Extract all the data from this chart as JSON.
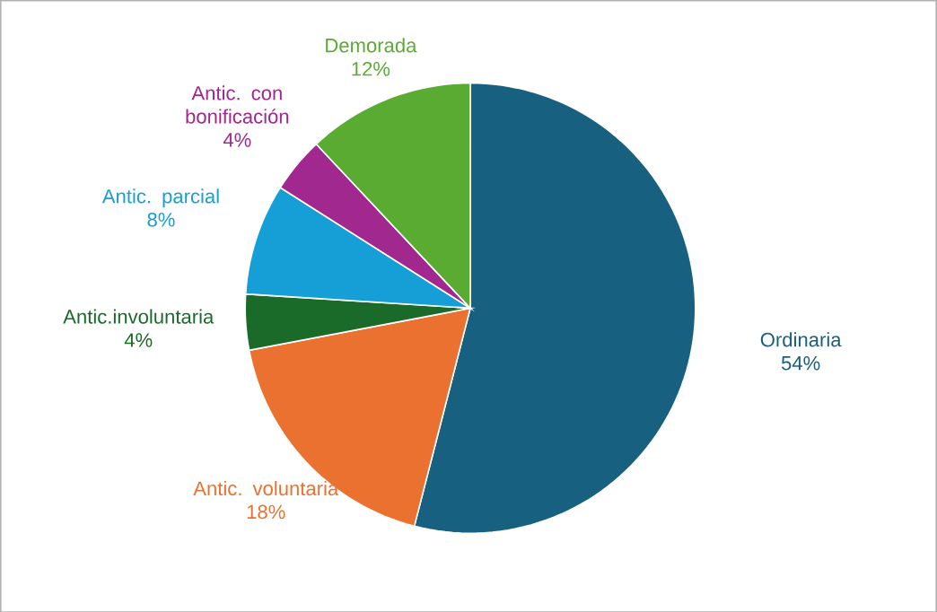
{
  "chart_data": {
    "type": "pie",
    "categories": [
      "Ordinaria",
      "Antic. voluntaria",
      "Antic.involuntaria",
      "Antic. parcial",
      "Antic. con bonificación",
      "Demorada"
    ],
    "values": [
      54,
      18,
      4,
      8,
      4,
      12
    ],
    "value_labels": [
      "54%",
      "18%",
      "4%",
      "8%",
      "4%",
      "12%"
    ],
    "colors": [
      "#17607f",
      "#ea7130",
      "#1a6b2a",
      "#159fd6",
      "#a0288e",
      "#5aab32"
    ]
  }
}
